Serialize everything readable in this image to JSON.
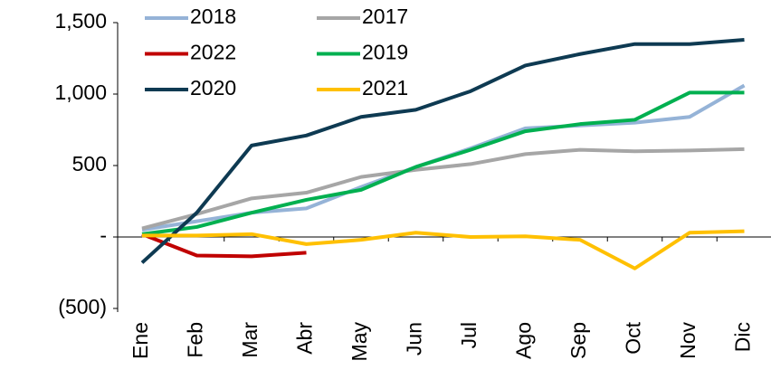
{
  "chart_data": {
    "type": "line",
    "categories": [
      "Ene",
      "Feb",
      "Mar",
      "Abr",
      "May",
      "Jun",
      "Jul",
      "Ago",
      "Sep",
      "Oct",
      "Nov",
      "Dic"
    ],
    "series": [
      {
        "name": "2018",
        "color": "#95b3d7",
        "values": [
          50,
          110,
          170,
          200,
          350,
          490,
          620,
          760,
          780,
          800,
          840,
          1060
        ]
      },
      {
        "name": "2017",
        "color": "#a6a6a6",
        "values": [
          60,
          160,
          270,
          310,
          420,
          470,
          510,
          580,
          610,
          600,
          605,
          615
        ]
      },
      {
        "name": "2022",
        "color": "#c00000",
        "values": [
          20,
          -130,
          -135,
          -110,
          null,
          null,
          null,
          null,
          null,
          null,
          null,
          null
        ]
      },
      {
        "name": "2019",
        "color": "#00b050",
        "values": [
          20,
          70,
          170,
          260,
          330,
          490,
          610,
          740,
          790,
          820,
          1010,
          1010
        ]
      },
      {
        "name": "2020",
        "color": "#0e3a52",
        "values": [
          -180,
          170,
          640,
          710,
          840,
          890,
          1020,
          1200,
          1280,
          1350,
          1350,
          1380
        ]
      },
      {
        "name": "2021",
        "color": "#ffc000",
        "values": [
          10,
          10,
          20,
          -50,
          -20,
          30,
          0,
          5,
          -20,
          -220,
          30,
          40
        ]
      }
    ],
    "ylim": [
      -500,
      1500
    ],
    "yticks": [
      {
        "value": -500,
        "label": "(500)"
      },
      {
        "value": 0,
        "label": "-"
      },
      500,
      {
        "value": 1000,
        "label": "1,000"
      },
      {
        "value": 1500,
        "label": "1,500"
      }
    ]
  }
}
